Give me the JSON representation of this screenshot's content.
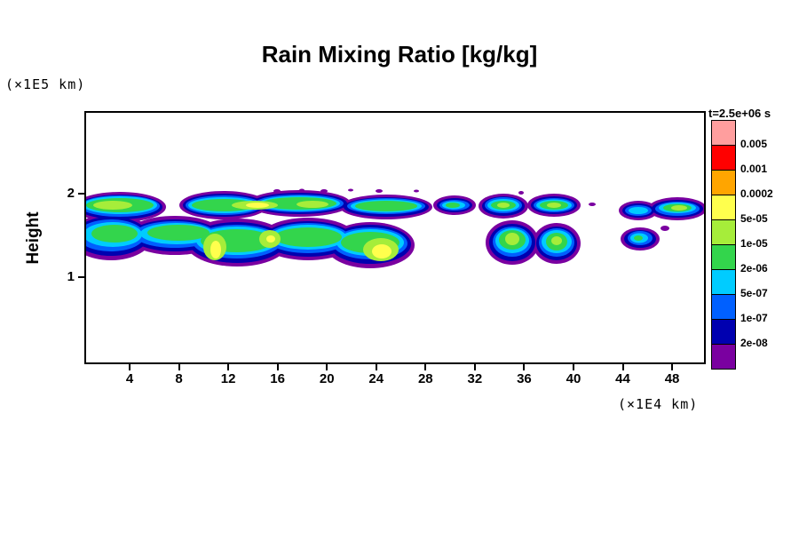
{
  "title": "Rain Mixing Ratio [kg/kg]",
  "y_axis_unit": "(×1E5 km)",
  "x_axis_unit": "(×1E4 km)",
  "y_axis_title": "Height",
  "colorbar": {
    "title": "t=2.5e+06 s",
    "labels": [
      "0.005",
      "0.001",
      "0.0002",
      "5e-05",
      "1e-05",
      "2e-06",
      "5e-07",
      "1e-07",
      "2e-08"
    ]
  },
  "chart_data": {
    "type": "heatmap",
    "subtype": "filled-contour",
    "title": "Rain Mixing Ratio [kg/kg]",
    "xlabel": "(×1E4 km)",
    "ylabel": "Height (×1E5 km)",
    "time_annotation": "t=2.5e+06 s",
    "x_ticks": [
      4,
      8,
      12,
      16,
      20,
      24,
      28,
      32,
      36,
      40,
      44,
      48
    ],
    "y_ticks": [
      1,
      2
    ],
    "xlim": [
      0,
      51
    ],
    "ylim": [
      0,
      3
    ],
    "grid": false,
    "legend_position": "right-colorbar",
    "levels": [
      2e-08,
      1e-07,
      5e-07,
      2e-06,
      1e-05,
      5e-05,
      0.0002,
      0.001,
      0.005
    ],
    "palette": [
      "#7a00a0",
      "#0000b0",
      "#0060ff",
      "#00ccff",
      "#33d54c",
      "#a6ed3a",
      "#ffff4d",
      "#ffa500",
      "#ff0000",
      "#ff9e9e"
    ],
    "palette_meaning": "fill colors for mixing-ratio bins from below 2e-08 (purple) up through above 0.005 (pink); plotted field only reaches the 5e-05 (yellow) bin",
    "features": [
      {
        "x_range": [
          0,
          28
        ],
        "height_range": [
          1.66,
          2.05
        ],
        "peak_bin": "1e-05 to 5e-05",
        "description": "long upper rain band with green interior and pale yellow-green cores"
      },
      {
        "x_range": [
          0.5,
          26.5
        ],
        "height_range": [
          1.15,
          1.72
        ],
        "peak_bin": "5e-05",
        "description": "thick lower rain band with yellow cores near x=11, x=15 and x=24"
      },
      {
        "x_range": [
          28.5,
          31.5
        ],
        "height_range": [
          1.8,
          2.0
        ],
        "peak_bin": "2e-06",
        "description": "small isolated cell"
      },
      {
        "x_range": [
          32,
          40
        ],
        "height_range": [
          1.2,
          2.05
        ],
        "peak_bin": "1e-05",
        "description": "detached two-lobe storm cluster"
      },
      {
        "x_range": [
          43.5,
          50.5
        ],
        "height_range": [
          1.72,
          2.0
        ],
        "peak_bin": "1e-05",
        "description": "far-right upper band"
      },
      {
        "x_range": [
          43.5,
          47
        ],
        "height_range": [
          1.3,
          1.62
        ],
        "peak_bin": "2e-06",
        "description": "small far-right lower cell"
      }
    ]
  }
}
